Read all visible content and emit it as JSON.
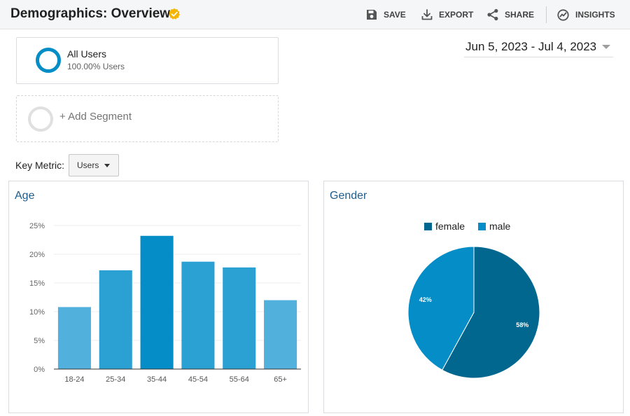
{
  "header": {
    "title": "Demographics: Overview",
    "actions": [
      {
        "label": "SAVE",
        "icon": "save-icon"
      },
      {
        "label": "EXPORT",
        "icon": "export-icon"
      },
      {
        "label": "SHARE",
        "icon": "share-icon"
      },
      {
        "label": "INSIGHTS",
        "icon": "insights-icon"
      }
    ],
    "verified_color": "#f4b400"
  },
  "segments": {
    "active": {
      "name": "All Users",
      "subtitle": "100.00% Users",
      "color": "#058dc7"
    },
    "add_label": "+ Add Segment"
  },
  "date_range": "Jun 5, 2023 - Jul 4, 2023",
  "key_metric": {
    "label": "Key Metric:",
    "value": "Users"
  },
  "panels": {
    "age_title": "Age",
    "gender_title": "Gender"
  },
  "chart_data": [
    {
      "type": "bar",
      "title": "Age",
      "categories": [
        "18-24",
        "25-34",
        "35-44",
        "45-54",
        "55-64",
        "65+"
      ],
      "values": [
        10.8,
        17.2,
        23.2,
        18.7,
        17.7,
        12.0
      ],
      "ylim": [
        0,
        25
      ],
      "yticks": [
        "0%",
        "5%",
        "10%",
        "15%",
        "20%",
        "25%"
      ],
      "colors": [
        "#52b1dc",
        "#2ba0d3",
        "#058dc7",
        "#2ba0d3",
        "#2ba0d3",
        "#52b1dc"
      ],
      "grid": true
    },
    {
      "type": "pie",
      "title": "Gender",
      "labels": [
        "female",
        "male"
      ],
      "values": [
        58,
        42
      ],
      "slice_labels": [
        "58%",
        "42%"
      ],
      "colors": [
        "#02678f",
        "#058dc7"
      ],
      "legend": "top"
    }
  ]
}
